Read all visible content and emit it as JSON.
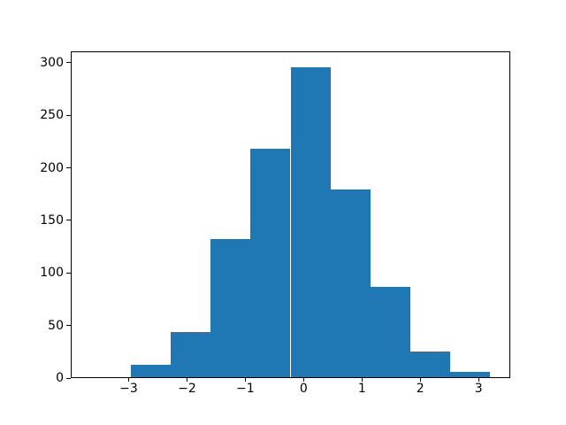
{
  "chart_data": {
    "type": "bar",
    "subtype": "histogram",
    "title": "",
    "xlabel": "",
    "ylabel": "",
    "bin_edges": [
      -3.65,
      -2.965,
      -2.28,
      -1.595,
      -0.91,
      -0.225,
      0.46,
      1.145,
      1.83,
      2.515,
      3.2
    ],
    "counts": [
      1,
      13,
      44,
      132,
      218,
      296,
      179,
      87,
      25,
      6
    ],
    "xlim": [
      -3.9925,
      3.5425
    ],
    "ylim": [
      0,
      310.8
    ],
    "xtick_values": [
      -3,
      -2,
      -1,
      0,
      1,
      2,
      3
    ],
    "xtick_labels": [
      "−3",
      "−2",
      "−1",
      "0",
      "1",
      "2",
      "3"
    ],
    "ytick_values": [
      0,
      50,
      100,
      150,
      200,
      250,
      300
    ],
    "ytick_labels": [
      "0",
      "50",
      "100",
      "150",
      "200",
      "250",
      "300"
    ],
    "bar_color": "#1f77b4",
    "axis_color": "#000000",
    "background_color": "#ffffff",
    "grid": false,
    "legend": null
  }
}
